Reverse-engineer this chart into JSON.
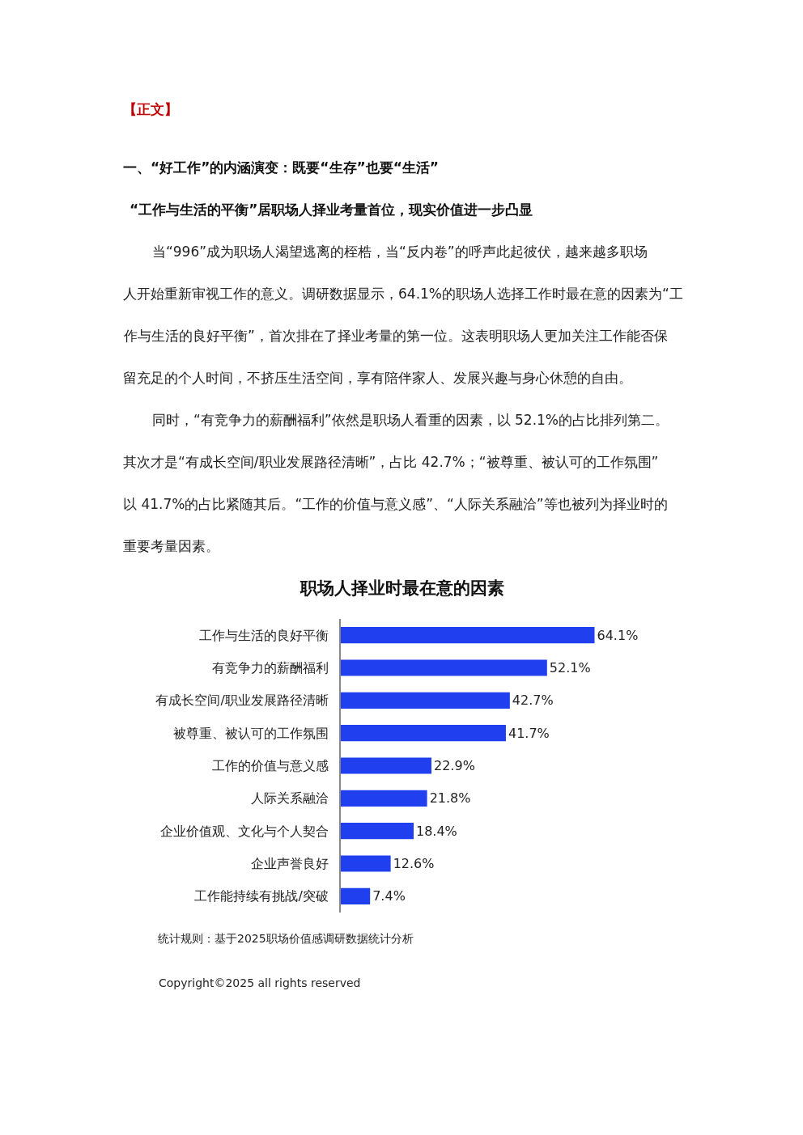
{
  "chart_data": {
    "type": "bar",
    "orientation": "horizontal",
    "data_labels": true,
    "title": "职场人择业时最在意的因素",
    "categories": [
      "工作与生活的良好平衡",
      "有竞争力的薪酬福利",
      "有成长空间/职业发展路径清晰",
      "被尊重、被认可的工作氛围",
      "工作的价值与意义感",
      "人际关系融洽",
      "企业价值观、文化与个人契合",
      "企业声誉良好",
      "工作能持续有挑战/突破"
    ],
    "values": [
      64.1,
      52.1,
      42.7,
      41.7,
      22.9,
      21.8,
      18.4,
      12.6,
      7.4
    ],
    "value_labels": [
      "64.1%",
      "52.1%",
      "42.7%",
      "41.7%",
      "22.9%",
      "21.8%",
      "18.4%",
      "12.6%",
      "7.4%"
    ],
    "color": "#2040f0",
    "legend": false,
    "tick_labels": "y",
    "annotations": [
      "【正文】",
      "一、“好工作”的内涵演变：既要“生存”也要“生活”",
      "“工作与生活的平衡”居职场人择业考量首位，现实价值进一步凸显",
      "当“996”成为职场人渴望逃离的桎梏，当“反内卷”的呼声此起彼伏，越来越多职场",
      "人开始重新审视工作的意义。调研数据显示，64.1%的职场人选择工作时最在意的因素为“工",
      "作与生活的良好平衡”，首次排在了择业考量的第一位。这表明职场人更加关注工作能否保",
      "留充足的个人时间，不挤压生活空间，享有陪伴家人、发展兴趣与身心休憩的自由。",
      "同时，“有竞争力的薪酬福利”依然是职场人看重的因素，以 52.1%的占比排列第二。",
      "其次才是“有成长空间/职业发展路径清晰”，占比 42.7%；“被尊重、被认可的工作氛围”",
      "以 41.7%的占比紧随其后。“工作的价值与意义感”、“人际关系融洽”等也被列为择业时的",
      "重要考量因素。",
      "统计规则：基于2025职场价值感调研数据统计分析",
      "Copyright©2025 all rights reserved"
    ]
  }
}
